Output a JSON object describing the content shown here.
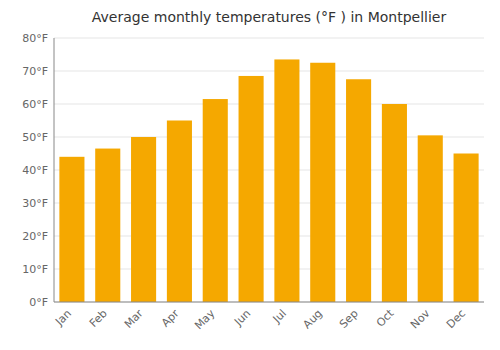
{
  "chart_data": {
    "type": "bar",
    "title": "Average monthly temperatures (°F ) in Montpellier",
    "categories": [
      "Jan",
      "Feb",
      "Mar",
      "Apr",
      "May",
      "Jun",
      "Jul",
      "Aug",
      "Sep",
      "Oct",
      "Nov",
      "Dec"
    ],
    "values": [
      44,
      46.5,
      50,
      55,
      61.5,
      68.5,
      73.5,
      72.5,
      67.5,
      60,
      50.5,
      45
    ],
    "color": "#F5A800",
    "ylim": [
      0,
      80
    ],
    "yticks": [
      {
        "value": 0,
        "label": "0°F"
      },
      {
        "value": 10,
        "label": "10°F"
      },
      {
        "value": 20,
        "label": "20°F"
      },
      {
        "value": 30,
        "label": "30°F"
      },
      {
        "value": 40,
        "label": "40°F"
      },
      {
        "value": 50,
        "label": "50°F"
      },
      {
        "value": 60,
        "label": "60°F"
      },
      {
        "value": 70,
        "label": "70°F"
      },
      {
        "value": 80,
        "label": "80°F"
      }
    ],
    "grid": true
  }
}
